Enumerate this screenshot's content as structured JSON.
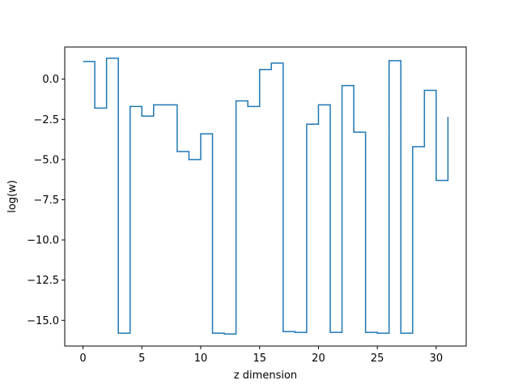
{
  "chart_data": {
    "type": "step",
    "title": "",
    "xlabel": "z dimension",
    "ylabel": "log(w)",
    "xlim": [
      -1.55,
      32.55
    ],
    "ylim": [
      -16.6,
      2.0
    ],
    "xticks": [
      0,
      5,
      10,
      15,
      20,
      25,
      30
    ],
    "yticks": [
      0.0,
      -2.5,
      -5.0,
      -7.5,
      -10.0,
      -12.5,
      -15.0
    ],
    "xtick_labels": [
      "0",
      "5",
      "10",
      "15",
      "20",
      "25",
      "30"
    ],
    "ytick_labels": [
      "0.0",
      "−2.5",
      "−5.0",
      "−7.5",
      "−10.0",
      "−12.5",
      "−15.0"
    ],
    "grid": false,
    "series": [
      {
        "color": "#1f77b4",
        "x": [
          0,
          1,
          2,
          3,
          4,
          5,
          6,
          7,
          8,
          9,
          10,
          11,
          12,
          13,
          14,
          15,
          16,
          17,
          18,
          19,
          20,
          21,
          22,
          23,
          24,
          25,
          26,
          27,
          28,
          29,
          30,
          31
        ],
        "y": [
          1.1,
          -1.8,
          1.3,
          -15.8,
          -1.7,
          -2.3,
          -1.6,
          -1.6,
          -4.5,
          -5.0,
          -3.4,
          -15.8,
          -15.85,
          -1.35,
          -1.7,
          0.6,
          1.0,
          -15.7,
          -15.75,
          -2.8,
          -1.6,
          -15.75,
          -0.4,
          -3.3,
          -15.75,
          -15.8,
          1.15,
          -15.8,
          -4.2,
          -0.7,
          -6.3,
          -2.35
        ]
      }
    ]
  }
}
